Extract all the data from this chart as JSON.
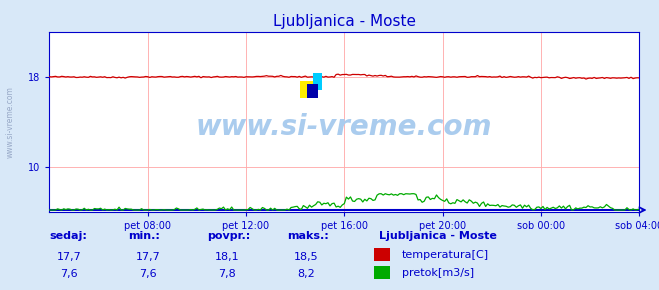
{
  "title": "Ljubljanica - Moste",
  "title_color": "#0000cc",
  "bg_color": "#d8e8f8",
  "plot_bg_color": "#ffffff",
  "grid_color": "#ffaaaa",
  "axis_color": "#0000cc",
  "watermark_text": "www.si-vreme.com",
  "watermark_color": "#aaccee",
  "xlim": [
    0,
    288
  ],
  "ylim_temp": [
    6,
    22
  ],
  "yticks_temp": [
    10,
    18
  ],
  "temp_color": "#cc0000",
  "flow_color": "#00aa00",
  "baseline_color": "#0000cc",
  "x_tick_labels": [
    "pet 08:00",
    "pet 12:00",
    "pet 16:00",
    "pet 20:00",
    "sob 00:00",
    "sob 04:00"
  ],
  "x_tick_positions": [
    48,
    96,
    144,
    192,
    240,
    288
  ],
  "table_headers": [
    "sedaj:",
    "min.:",
    "povpr.:",
    "maks.:"
  ],
  "table_temp_vals": [
    "17,7",
    "17,7",
    "18,1",
    "18,5"
  ],
  "table_flow_vals": [
    "7,6",
    "7,6",
    "7,8",
    "8,2"
  ],
  "legend_title": "Ljubljanica - Moste",
  "legend_items": [
    "temperatura[C]",
    "pretok[m3/s]"
  ],
  "legend_colors": [
    "#cc0000",
    "#00aa00"
  ],
  "left_label": "www.si-vreme.com"
}
